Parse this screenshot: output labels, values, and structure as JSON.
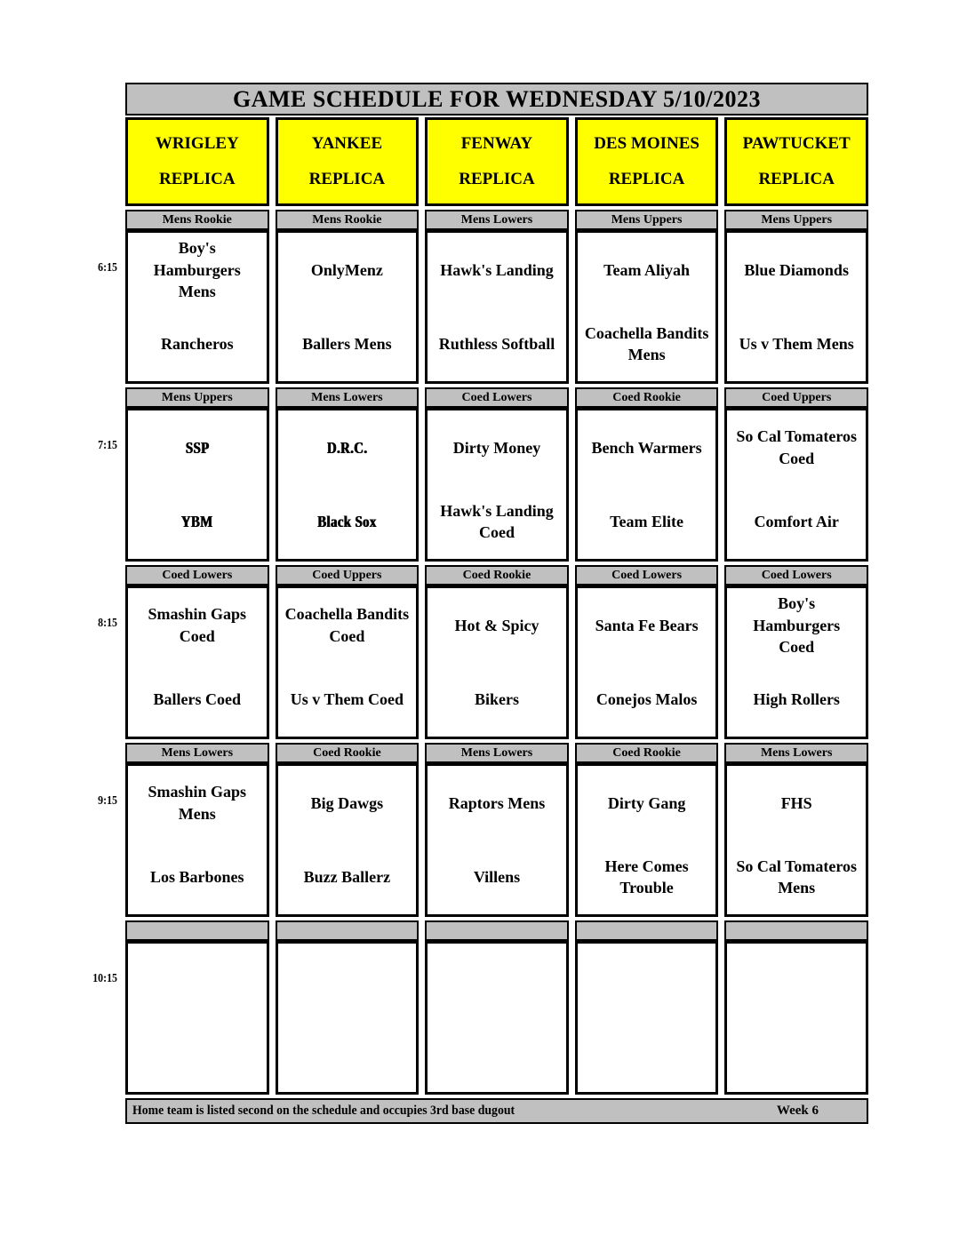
{
  "title": "GAME SCHEDULE FOR WEDNESDAY 5/10/2023",
  "fields": [
    {
      "name": "WRIGLEY",
      "type": "REPLICA"
    },
    {
      "name": "YANKEE",
      "type": "REPLICA"
    },
    {
      "name": "FENWAY",
      "type": "REPLICA"
    },
    {
      "name": "DES MOINES",
      "type": "REPLICA"
    },
    {
      "name": "PAWTUCKET",
      "type": "REPLICA"
    }
  ],
  "time_slots": [
    {
      "time": "6:15",
      "games": [
        {
          "division": "Mens Rookie",
          "away": "Boy's\nHamburgers\nMens",
          "home": "Rancheros"
        },
        {
          "division": "Mens Rookie",
          "away": "OnlyMenz",
          "home": "Ballers Mens"
        },
        {
          "division": "Mens Lowers",
          "away": "Hawk's Landing",
          "home": "Ruthless Softball"
        },
        {
          "division": "Mens Uppers",
          "away": "Team Aliyah",
          "home": "Coachella Bandits\nMens"
        },
        {
          "division": "Mens Uppers",
          "away": "Blue Diamonds",
          "home": "Us v Them Mens"
        }
      ]
    },
    {
      "time": "7:15",
      "games": [
        {
          "division": "Mens Uppers",
          "away": "SSP",
          "home": "YBM",
          "away_alt": true,
          "home_alt": true
        },
        {
          "division": "Mens Lowers",
          "away": "D.R.C.",
          "home": "Black Sox",
          "away_alt": true,
          "home_alt": true
        },
        {
          "division": "Coed Lowers",
          "away": "Dirty Money",
          "home": "Hawk's Landing\nCoed"
        },
        {
          "division": "Coed Rookie",
          "away": "Bench Warmers",
          "home": "Team Elite"
        },
        {
          "division": "Coed Uppers",
          "away": "So Cal Tomateros\nCoed",
          "home": "Comfort Air"
        }
      ]
    },
    {
      "time": "8:15",
      "games": [
        {
          "division": "Coed Lowers",
          "away": "Smashin Gaps\nCoed",
          "home": "Ballers Coed"
        },
        {
          "division": "Coed Uppers",
          "away": "Coachella Bandits\nCoed",
          "home": "Us v Them Coed"
        },
        {
          "division": "Coed Rookie",
          "away": "Hot & Spicy",
          "home": "Bikers"
        },
        {
          "division": "Coed Lowers",
          "away": "Santa Fe Bears",
          "home": "Conejos Malos"
        },
        {
          "division": "Coed Lowers",
          "away": "Boy's\nHamburgers\nCoed",
          "home": "High Rollers"
        }
      ]
    },
    {
      "time": "9:15",
      "games": [
        {
          "division": "Mens Lowers",
          "away": "Smashin Gaps\nMens",
          "home": "Los Barbones"
        },
        {
          "division": "Coed Rookie",
          "away": "Big Dawgs",
          "home": "Buzz Ballerz"
        },
        {
          "division": "Mens Lowers",
          "away": "Raptors Mens",
          "home": "Villens"
        },
        {
          "division": "Coed Rookie",
          "away": "Dirty Gang",
          "home": "Here Comes\nTrouble"
        },
        {
          "division": "Mens Lowers",
          "away": "FHS",
          "home": "So Cal Tomateros\nMens"
        }
      ]
    },
    {
      "time": "10:15",
      "games": [
        {
          "division": "",
          "away": "",
          "home": ""
        },
        {
          "division": "",
          "away": "",
          "home": ""
        },
        {
          "division": "",
          "away": "",
          "home": ""
        },
        {
          "division": "",
          "away": "",
          "home": ""
        },
        {
          "division": "",
          "away": "",
          "home": ""
        }
      ]
    }
  ],
  "footer": {
    "note": "Home team is listed second on the schedule and occupies 3rd base dugout",
    "week": "Week 6"
  },
  "colors": {
    "header_gray": "#c0c0c0",
    "field_yellow": "#ffff00",
    "border_black": "#000000",
    "page_white": "#ffffff"
  }
}
